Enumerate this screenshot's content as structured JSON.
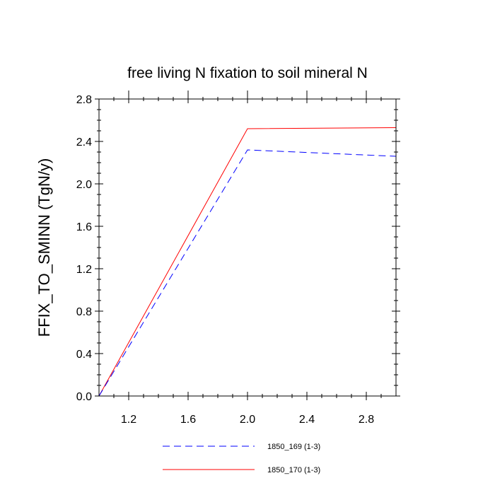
{
  "chart_data": {
    "type": "line",
    "title": "free living N fixation to soil mineral N",
    "xlabel": "",
    "ylabel": "FFIX_TO_SMINN  (TgN/y)",
    "xlim": [
      1.0,
      3.0
    ],
    "ylim": [
      0.0,
      2.8
    ],
    "x_ticks": [
      1.2,
      1.6,
      2.0,
      2.4,
      2.8
    ],
    "x_tick_labels": [
      "1.2",
      "1.6",
      "2.0",
      "2.4",
      "2.8"
    ],
    "y_ticks": [
      0.0,
      0.4,
      0.8,
      1.2,
      1.6,
      2.0,
      2.4,
      2.8
    ],
    "y_tick_labels": [
      "0.0",
      "0.4",
      "0.8",
      "1.2",
      "1.6",
      "2.0",
      "2.4",
      "2.8"
    ],
    "grid": false,
    "legend_position": "bottom",
    "series": [
      {
        "name": "1850_169 (1-3)",
        "x": [
          1,
          2,
          3
        ],
        "values": [
          0.0,
          2.32,
          2.26
        ],
        "color": "#0000ff",
        "dash": "dashed"
      },
      {
        "name": "1850_170 (1-3)",
        "x": [
          1,
          2,
          3
        ],
        "values": [
          0.0,
          2.52,
          2.53
        ],
        "color": "#ff0000",
        "dash": "solid"
      }
    ]
  }
}
